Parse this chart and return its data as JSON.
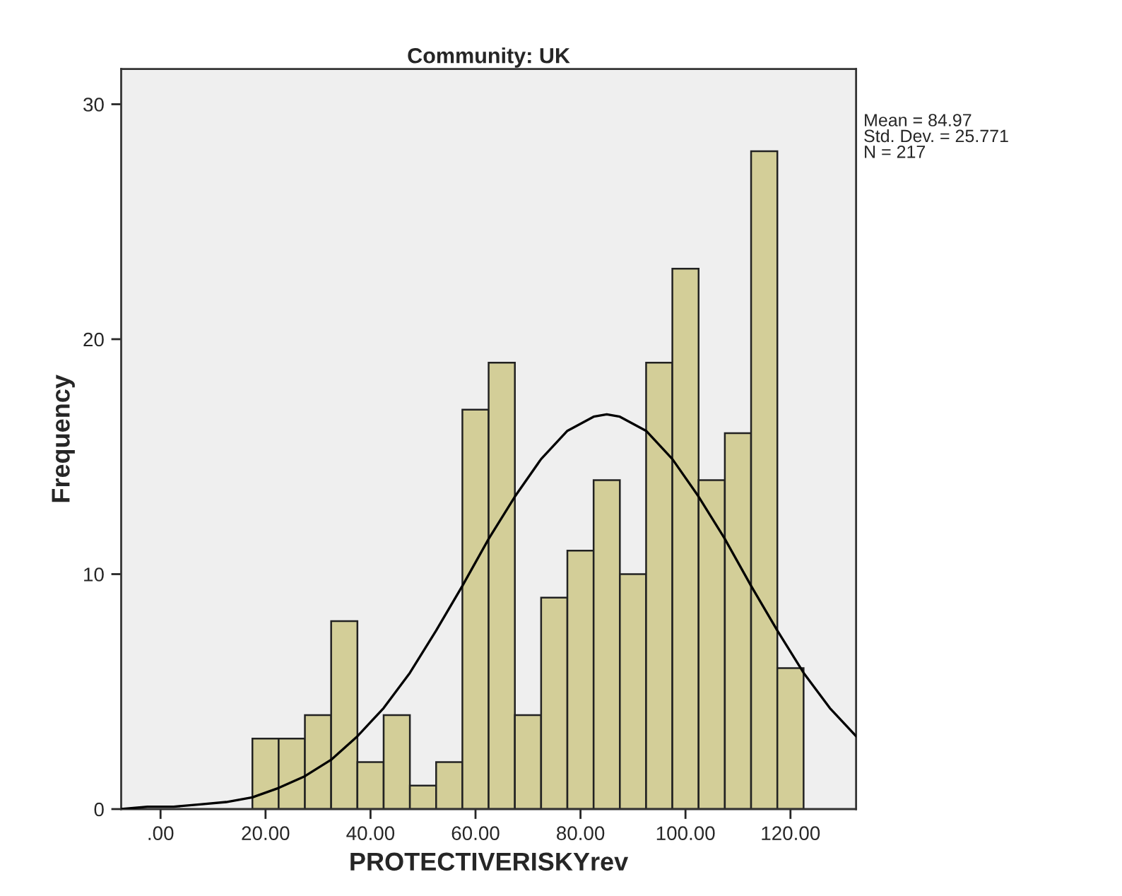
{
  "chart_data": {
    "type": "histogram",
    "title": "Community: UK",
    "xlabel": "PROTECTIVERISKYrev",
    "ylabel": "Frequency",
    "bins": [
      17.5,
      22.5,
      27.5,
      32.5,
      37.5,
      42.5,
      47.5,
      52.5,
      57.5,
      62.5,
      67.5,
      72.5,
      77.5,
      82.5,
      87.5,
      92.5,
      97.5,
      102.5,
      107.5,
      112.5,
      117.5,
      122.5
    ],
    "values": [
      3,
      3,
      4,
      8,
      2,
      4,
      1,
      2,
      17,
      19,
      4,
      9,
      11,
      14,
      10,
      19,
      23,
      14,
      16,
      28,
      6
    ],
    "color": "#d3ce98",
    "series": [
      {
        "type": "line",
        "color": "#000000",
        "x": [
          -7.5,
          -2.5,
          2.5,
          7.5,
          12.5,
          17.5,
          22.5,
          27.5,
          32.5,
          37.5,
          42.5,
          47.5,
          52.5,
          57.5,
          62.5,
          67.5,
          72.5,
          77.5,
          82.5,
          85,
          87.5,
          92.5,
          97.5,
          102.5,
          107.5,
          112.5,
          117.5,
          122.5,
          127.5,
          132.5
        ],
        "values": [
          0.0,
          0.1,
          0.1,
          0.2,
          0.3,
          0.5,
          0.9,
          1.4,
          2.1,
          3.1,
          4.3,
          5.8,
          7.6,
          9.5,
          11.5,
          13.3,
          14.9,
          16.1,
          16.7,
          16.8,
          16.7,
          16.1,
          14.9,
          13.3,
          11.5,
          9.5,
          7.6,
          5.8,
          4.3,
          3.1
        ]
      }
    ],
    "xlim": [
      -7.5,
      132.5
    ],
    "ylim": [
      0,
      31.5
    ],
    "xticks": [
      {
        "value": 0,
        "label": ".00"
      },
      {
        "value": 20,
        "label": "20.00"
      },
      {
        "value": 40,
        "label": "40.00"
      },
      {
        "value": 60,
        "label": "60.00"
      },
      {
        "value": 80,
        "label": "80.00"
      },
      {
        "value": 100,
        "label": "100.00"
      },
      {
        "value": 120,
        "label": "120.00"
      }
    ],
    "yticks": [
      0,
      10,
      20,
      30
    ],
    "annotations": [
      "Mean = 84.97\nStd. Dev. = 25.771\nN = 217"
    ],
    "grid": false,
    "legend": false
  }
}
